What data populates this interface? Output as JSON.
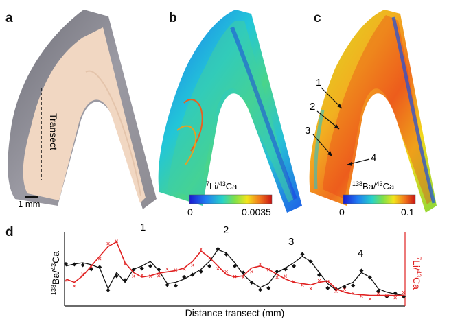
{
  "panels": {
    "a": "a",
    "b": "b",
    "c": "c",
    "d": "d"
  },
  "panel_a": {
    "transect_label": "Transect",
    "scale_bar_label": "1 mm"
  },
  "panel_b": {
    "colorbar_title_sup": "7",
    "colorbar_title_a": "Li/",
    "colorbar_title_sup2": "43",
    "colorbar_title_b": "Ca",
    "colorbar_min": "0",
    "colorbar_max": "0.0035"
  },
  "panel_c": {
    "colorbar_title_sup": "138",
    "colorbar_title_a": "Ba/",
    "colorbar_title_sup2": "43",
    "colorbar_title_b": "Ca",
    "colorbar_min": "0",
    "colorbar_max": "0.1",
    "annotations": [
      "1",
      "2",
      "3",
      "4"
    ]
  },
  "panel_d": {
    "xlabel": "Distance transect (mm)",
    "ylabel_left_sup": "138",
    "ylabel_left_a": "Ba/",
    "ylabel_left_sup2": "43",
    "ylabel_left_b": "Ca",
    "ylabel_right_sup": "7",
    "ylabel_right_a": "Li/",
    "ylabel_right_sup2": "43",
    "ylabel_right_b": "Ca",
    "peak_labels": [
      "1",
      "2",
      "3",
      "4"
    ],
    "colors": {
      "ba": "#111111",
      "li": "#e02020"
    }
  },
  "chart_data": {
    "type": "line",
    "xlabel": "Distance transect (mm)",
    "series": [
      {
        "name": "138Ba/43Ca",
        "values": [
          0.55,
          0.58,
          0.6,
          0.57,
          0.52,
          0.2,
          0.45,
          0.3,
          0.5,
          0.55,
          0.62,
          0.48,
          0.28,
          0.3,
          0.35,
          0.42,
          0.5,
          0.62,
          0.8,
          0.75,
          0.6,
          0.42,
          0.3,
          0.22,
          0.28,
          0.45,
          0.52,
          0.6,
          0.7,
          0.62,
          0.45,
          0.28,
          0.18,
          0.25,
          0.3,
          0.45,
          0.38,
          0.2,
          0.15,
          0.12,
          0.1
        ]
      },
      {
        "name": "7Li/43Ca",
        "values": [
          0.35,
          0.3,
          0.4,
          0.55,
          0.7,
          0.85,
          0.92,
          0.6,
          0.45,
          0.38,
          0.4,
          0.44,
          0.46,
          0.48,
          0.52,
          0.62,
          0.78,
          0.68,
          0.55,
          0.42,
          0.38,
          0.4,
          0.52,
          0.55,
          0.5,
          0.42,
          0.35,
          0.3,
          0.28,
          0.26,
          0.3,
          0.32,
          0.2,
          0.15,
          0.12,
          0.11,
          0.1,
          0.1,
          0.1,
          0.1,
          0.1
        ]
      }
    ]
  }
}
